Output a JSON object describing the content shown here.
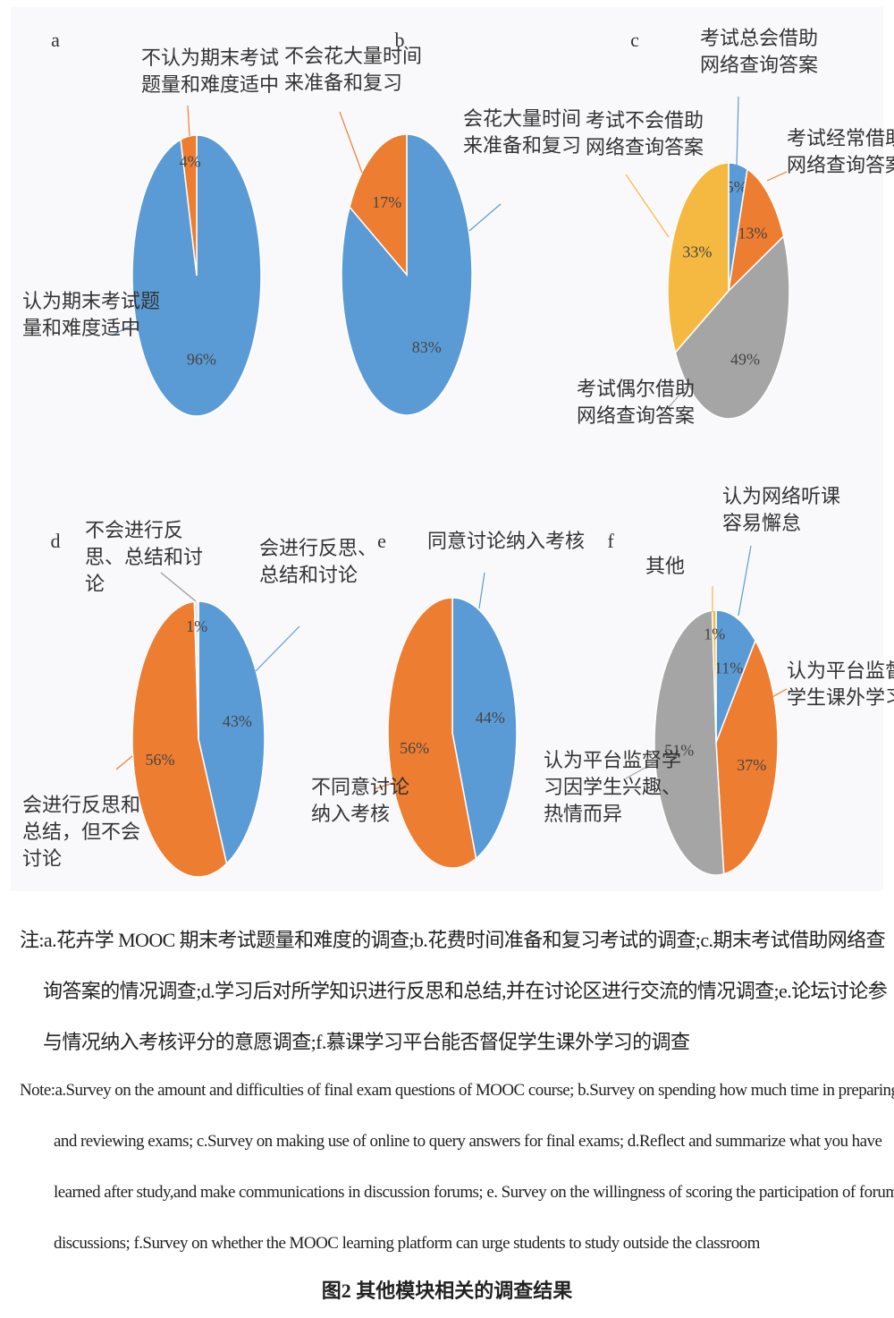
{
  "chart_data": [
    {
      "type": "pie",
      "title": "a",
      "categories": [
        "认为期末考试题量和难度适中",
        "不认为期末考试题量和难度适中"
      ],
      "values": [
        96,
        4
      ],
      "value_labels": [
        "96%",
        "4%"
      ],
      "colors": [
        "#5b9bd5",
        "#ed7d31"
      ]
    },
    {
      "type": "pie",
      "title": "b",
      "categories": [
        "会花大量时间来准备和复习",
        "不会花大量时间来准备和复习"
      ],
      "values": [
        83,
        17
      ],
      "value_labels": [
        "83%",
        "17%"
      ],
      "colors": [
        "#5b9bd5",
        "#ed7d31"
      ]
    },
    {
      "type": "pie",
      "title": "c",
      "categories": [
        "考试总会借助网络查询答案",
        "考试经常借助网络查询答案",
        "考试偶尔借助网络查询答案",
        "考试不会借助网络查询答案"
      ],
      "values": [
        5,
        13,
        49,
        33
      ],
      "value_labels": [
        "5%",
        "13%",
        "49%",
        "33%"
      ],
      "colors": [
        "#5b9bd5",
        "#ed7d31",
        "#a5a5a5",
        "#f5b942"
      ]
    },
    {
      "type": "pie",
      "title": "d",
      "categories": [
        "会进行反思、总结和讨论",
        "会进行反思和总结，但不会讨论",
        "不会进行反思、总结和讨论"
      ],
      "values": [
        43,
        56,
        1
      ],
      "value_labels": [
        "43%",
        "56%",
        "1%"
      ],
      "colors": [
        "#5b9bd5",
        "#ed7d31",
        "#e8e8e8"
      ]
    },
    {
      "type": "pie",
      "title": "e",
      "categories": [
        "同意讨论纳入考核",
        "不同意讨论纳入考核"
      ],
      "values": [
        44,
        56
      ],
      "value_labels": [
        "44%",
        "56%"
      ],
      "colors": [
        "#5b9bd5",
        "#ed7d31"
      ]
    },
    {
      "type": "pie",
      "title": "f",
      "categories": [
        "认为网络听课容易懈怠",
        "认为平台监督学生课外学习",
        "认为平台监督学习因学生兴趣、热情而异",
        "其他"
      ],
      "values": [
        11,
        37,
        51,
        1
      ],
      "value_labels": [
        "11%",
        "37%",
        "51%",
        "1%"
      ],
      "colors": [
        "#5b9bd5",
        "#ed7d31",
        "#a5a5a5",
        "#f5b942"
      ]
    }
  ],
  "note_cn": "注:a.花卉学 MOOC 期末考试题量和难度的调查;b.花费时间准备和复习考试的调查;c.期末考试借助网络查询答案的情况调查;d.学习后对所学知识进行反思和总结,并在讨论区进行交流的情况调查;e.论坛讨论参与情况纳入考核评分的意愿调查;f.慕课学习平台能否督促学生课外学习的调查",
  "note_en": "Note:a.Survey on the amount and difficulties of final exam questions of MOOC course; b.Survey on spending how much time in preparing and reviewing exams; c.Survey on making use of online to query answers for final exams; d.Reflect and summarize what you have learned after study,and make communications in discussion forums; e. Survey on the willingness of scoring the participation of forum discussions; f.Survey on whether the MOOC learning platform can urge students to study outside the classroom",
  "figure_caption": "图2 其他模块相关的调查结果"
}
